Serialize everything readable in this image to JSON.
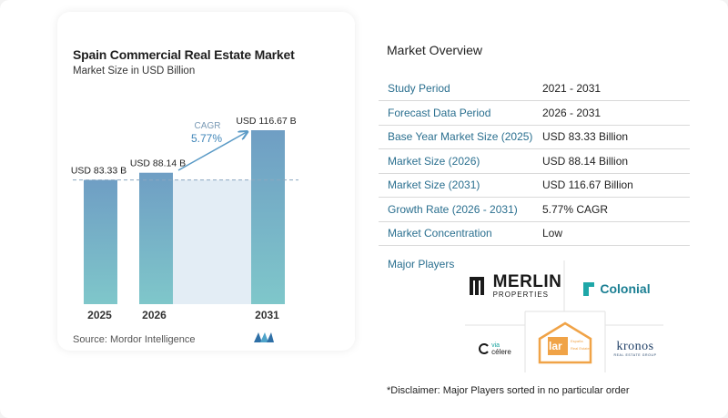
{
  "chart_data": {
    "type": "bar",
    "title": "Spain Commercial Real Estate Market",
    "subtitle": "Market Size in USD Billion",
    "categories": [
      "2025",
      "2026",
      "2031"
    ],
    "values": [
      83.33,
      88.14,
      116.67
    ],
    "data_labels": [
      "USD 83.33 B",
      "USD 88.14 B",
      "USD 116.67 B"
    ],
    "cagr_label": "CAGR",
    "cagr_value": "5.77%",
    "reference_line": 83.33,
    "ylim": [
      0,
      120
    ],
    "colors": {
      "bar_top": "#6f9ec4",
      "bar_bottom": "#7fc7ca",
      "band": "#e3edf5",
      "arrow": "#5a9ac6",
      "ref_line": "#8aa8c0"
    }
  },
  "source_text": "Source:  Mordor Intelligence",
  "overview": {
    "heading": "Market Overview",
    "rows": [
      {
        "label": "Study Period",
        "value": "2021 - 2031"
      },
      {
        "label": "Forecast Data Period",
        "value": "2026 - 2031"
      },
      {
        "label": "Base Year Market Size (2025)",
        "value": "USD 83.33 Billion"
      },
      {
        "label": "Market Size (2026)",
        "value": "USD 88.14 Billion"
      },
      {
        "label": "Market Size (2031)",
        "value": "USD 116.67 Billion"
      },
      {
        "label": "Growth Rate (2026 - 2031)",
        "value": "5.77% CAGR"
      },
      {
        "label": "Market Concentration",
        "value": "Low"
      }
    ]
  },
  "players": {
    "heading": "Major Players",
    "logos": {
      "merlin": {
        "name": "MERLIN",
        "sub": "PROPERTIES"
      },
      "colonial": {
        "name": "Colonial"
      },
      "viacelere": {
        "name1": "via",
        "name2": "célere"
      },
      "lar": {
        "name": "lar",
        "sub1": "España",
        "sub2": "Real Estate"
      },
      "kronos": {
        "name": "kronos",
        "sub": "REAL ESTATE GROUP"
      }
    }
  },
  "disclaimer": "*Disclaimer: Major Players sorted in no particular order"
}
